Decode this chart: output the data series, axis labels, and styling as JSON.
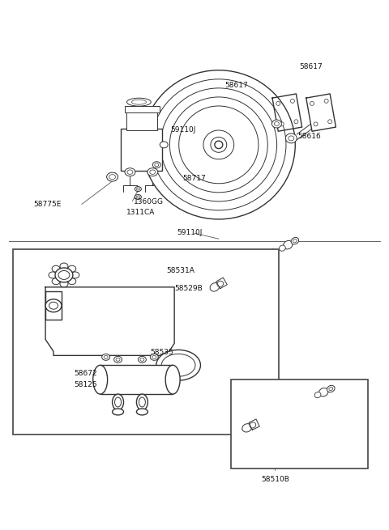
{
  "bg_color": "#ffffff",
  "line_color": "#333333",
  "label_color": "#111111",
  "fig_width": 4.8,
  "fig_height": 6.55,
  "top_labels": {
    "59110J_a": [
      0.33,
      0.845,
      "59110J"
    ],
    "59110J_b": [
      0.46,
      0.565,
      "59110J"
    ],
    "58717": [
      0.47,
      0.685,
      "58717"
    ],
    "1360GG": [
      0.34,
      0.667,
      "1360GG"
    ],
    "1311CA": [
      0.33,
      0.65,
      "1311CA"
    ],
    "58775E": [
      0.09,
      0.668,
      "58775E"
    ],
    "58617a": [
      0.58,
      0.895,
      "58617"
    ],
    "58617b": [
      0.76,
      0.92,
      "58617"
    ],
    "58616": [
      0.74,
      0.835,
      "58616"
    ]
  },
  "bot_labels": {
    "58531A": [
      0.41,
      0.51,
      "58531A"
    ],
    "58529B": [
      0.44,
      0.488,
      "58529B"
    ],
    "58535": [
      0.38,
      0.42,
      "58535"
    ],
    "58672": [
      0.19,
      0.34,
      "58672"
    ],
    "58125": [
      0.19,
      0.32,
      "58125"
    ],
    "58510B": [
      0.66,
      0.14,
      "58510B"
    ]
  }
}
